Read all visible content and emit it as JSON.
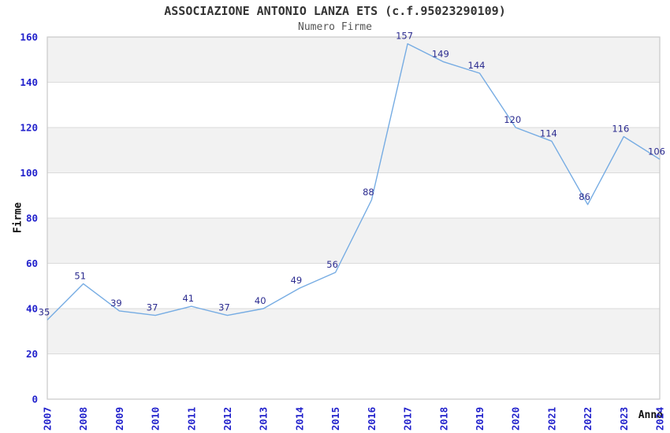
{
  "header": {
    "title": "ASSOCIAZIONE ANTONIO LANZA ETS (c.f.95023290109)",
    "subtitle": "Numero Firme"
  },
  "chart_data": {
    "type": "line",
    "title": "ASSOCIAZIONE ANTONIO LANZA ETS (c.f.95023290109)",
    "subtitle": "Numero Firme",
    "xlabel": "Anno",
    "ylabel": "Firme",
    "x": [
      2007,
      2008,
      2009,
      2010,
      2011,
      2012,
      2013,
      2014,
      2015,
      2016,
      2017,
      2018,
      2019,
      2020,
      2021,
      2022,
      2023,
      2024
    ],
    "series": [
      {
        "name": "Numero Firme",
        "values": [
          35,
          51,
          39,
          37,
          41,
          37,
          40,
          49,
          56,
          88,
          157,
          149,
          144,
          120,
          114,
          86,
          116,
          106
        ]
      }
    ],
    "ylim": [
      0,
      160
    ],
    "ytick_step": 20,
    "yticks": [
      0,
      20,
      40,
      60,
      80,
      100,
      120,
      140,
      160
    ],
    "data_labels": true,
    "legend_position": "none",
    "grid": "horizontal alternating bands",
    "colors": {
      "line": "#76ACE3",
      "data_label": "#2B2B8F",
      "tick_label": "#2222CC",
      "band": "#F2F2F2",
      "gridline": "#DBDBDB",
      "plot_border": "#C9C9C9",
      "title": "#333333",
      "subtitle": "#555555",
      "axis_label": "#111111",
      "background": "#FFFFFF"
    }
  }
}
